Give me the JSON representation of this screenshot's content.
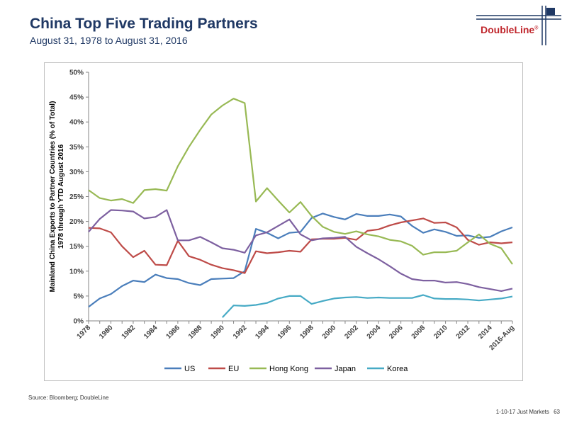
{
  "header": {
    "title": "China Top Five Trading Partners",
    "subtitle": "August 31, 1978 to August 31, 2016"
  },
  "logo": {
    "text": "DoubleLine",
    "mark": "®"
  },
  "source": "Source: Bloomberg; DoubleLine",
  "footer": {
    "label": "1-10-17 Just Markets",
    "page": "63"
  },
  "colors": {
    "US": "#4a7ebb",
    "EU": "#be4b48",
    "Hong Kong": "#98b954",
    "Japan": "#7d60a0",
    "Korea": "#46aac5",
    "axis": "#868686",
    "brand_red": "#c0272d",
    "brand_navy": "#1f3864"
  },
  "chart_data": {
    "type": "line",
    "ylabel": "Mainland China Exports to Partner Countries (% of Total)\n1978 through YTD August 2016",
    "xlabel": "",
    "ylim": [
      0,
      50
    ],
    "y_ticks": [
      "0%",
      "5%",
      "10%",
      "15%",
      "20%",
      "25%",
      "30%",
      "35%",
      "40%",
      "45%",
      "50%"
    ],
    "x_ticks": [
      "1978",
      "1980",
      "1982",
      "1984",
      "1986",
      "1988",
      "1990",
      "1992",
      "1994",
      "1996",
      "1998",
      "2000",
      "2002",
      "2004",
      "2006",
      "2008",
      "2010",
      "2012",
      "2014",
      "2016-Aug"
    ],
    "x": [
      1978,
      1979,
      1980,
      1981,
      1982,
      1983,
      1984,
      1985,
      1986,
      1987,
      1988,
      1989,
      1990,
      1991,
      1992,
      1993,
      1994,
      1995,
      1996,
      1997,
      1998,
      1999,
      2000,
      2001,
      2002,
      2003,
      2004,
      2005,
      2006,
      2007,
      2008,
      2009,
      2010,
      2011,
      2012,
      2013,
      2014,
      2015,
      2016
    ],
    "legend_position": "bottom",
    "grid": false,
    "series": [
      {
        "name": "US",
        "values": [
          2.8,
          4.5,
          5.4,
          7.0,
          8.1,
          7.8,
          9.3,
          8.6,
          8.4,
          7.6,
          7.2,
          8.4,
          8.5,
          8.6,
          10.0,
          18.5,
          17.7,
          16.6,
          17.7,
          17.9,
          20.7,
          21.6,
          20.9,
          20.4,
          21.5,
          21.1,
          21.1,
          21.4,
          21.0,
          19.1,
          17.7,
          18.4,
          17.9,
          17.1,
          17.2,
          16.7,
          16.9,
          18.0,
          18.8
        ]
      },
      {
        "name": "EU",
        "values": [
          18.7,
          18.6,
          17.8,
          15.0,
          12.8,
          14.1,
          11.3,
          11.2,
          16.1,
          13.0,
          12.3,
          11.3,
          10.6,
          10.2,
          9.6,
          14.0,
          13.6,
          13.8,
          14.1,
          13.9,
          16.4,
          16.5,
          16.5,
          16.7,
          16.3,
          18.1,
          18.4,
          19.2,
          19.8,
          20.2,
          20.6,
          19.7,
          19.8,
          18.8,
          16.3,
          15.3,
          15.8,
          15.6,
          15.8
        ]
      },
      {
        "name": "Hong Kong",
        "values": [
          26.3,
          24.7,
          24.2,
          24.5,
          23.7,
          26.3,
          26.5,
          26.2,
          31.1,
          35.0,
          38.4,
          41.5,
          43.3,
          44.7,
          43.8,
          24.0,
          26.7,
          24.2,
          21.8,
          23.9,
          21.1,
          18.9,
          17.9,
          17.5,
          18.0,
          17.4,
          17.0,
          16.3,
          16.0,
          15.1,
          13.3,
          13.8,
          13.8,
          14.1,
          15.8,
          17.4,
          15.5,
          14.6,
          11.4
        ]
      },
      {
        "name": "Japan",
        "values": [
          17.9,
          20.5,
          22.3,
          22.2,
          22.0,
          20.6,
          20.9,
          22.3,
          16.2,
          16.2,
          16.9,
          15.8,
          14.6,
          14.3,
          13.7,
          17.2,
          17.8,
          19.1,
          20.4,
          17.4,
          16.2,
          16.6,
          16.7,
          16.9,
          14.9,
          13.6,
          12.4,
          11.0,
          9.5,
          8.4,
          8.1,
          8.1,
          7.7,
          7.8,
          7.4,
          6.8,
          6.4,
          6.0,
          6.5
        ]
      },
      {
        "name": "Korea",
        "values": [
          null,
          null,
          null,
          null,
          null,
          null,
          null,
          null,
          null,
          null,
          null,
          null,
          0.7,
          3.1,
          3.0,
          3.2,
          3.6,
          4.5,
          5.0,
          5.0,
          3.4,
          4.0,
          4.5,
          4.7,
          4.8,
          4.6,
          4.7,
          4.6,
          4.6,
          4.6,
          5.2,
          4.5,
          4.4,
          4.4,
          4.3,
          4.1,
          4.3,
          4.5,
          4.9
        ]
      }
    ]
  }
}
